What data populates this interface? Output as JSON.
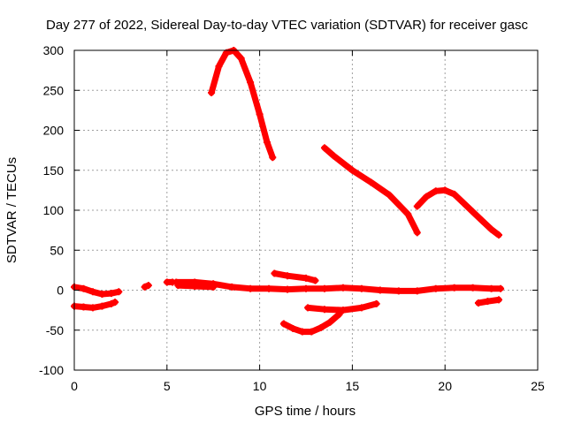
{
  "chart_data": {
    "type": "scatter",
    "title": "Day 277 of 2022, Sidereal Day-to-day VTEC variation (SDTVAR) for receiver gasc",
    "xlabel": "GPS time / hours",
    "ylabel": "SDTVAR / TECUs",
    "xlim": [
      0,
      25
    ],
    "ylim": [
      -100,
      300
    ],
    "xticks": [
      0,
      5,
      10,
      15,
      20,
      25
    ],
    "yticks": [
      -100,
      -50,
      0,
      50,
      100,
      150,
      200,
      250,
      300
    ],
    "grid": true,
    "marker": "+",
    "color": "#ff0000",
    "series": [
      {
        "name": "arc-1",
        "x": [
          0.0,
          0.5,
          1.0,
          1.5,
          2.0,
          2.4
        ],
        "y": [
          4,
          2,
          -2,
          -5,
          -4,
          -2
        ]
      },
      {
        "name": "arc-2",
        "x": [
          0.0,
          0.5,
          1.0,
          1.5,
          2.0,
          2.2
        ],
        "y": [
          -20,
          -21,
          -22,
          -20,
          -17,
          -15
        ]
      },
      {
        "name": "arc-3",
        "x": [
          3.8,
          4.0
        ],
        "y": [
          4,
          6
        ]
      },
      {
        "name": "arc-4",
        "x": [
          5.0,
          5.3
        ],
        "y": [
          10,
          10
        ]
      },
      {
        "name": "arc-5",
        "x": [
          5.5,
          6.5,
          7.5,
          8.5,
          9.5,
          10.5,
          11.5,
          12.5,
          13.5,
          14.5,
          15.5,
          16.5,
          17.5,
          18.5,
          19.5,
          20.5,
          21.5,
          22.5,
          23.0
        ],
        "y": [
          10,
          10,
          8,
          4,
          2,
          2,
          1,
          2,
          2,
          3,
          2,
          0,
          -1,
          -1,
          2,
          3,
          3,
          2,
          2
        ]
      },
      {
        "name": "arc-6",
        "x": [
          5.6,
          6.5,
          7.5
        ],
        "y": [
          6,
          5,
          4
        ]
      },
      {
        "name": "arc-7",
        "x": [
          7.4,
          7.8,
          8.2,
          8.6,
          9.0,
          9.5,
          10.0,
          10.4,
          10.7
        ],
        "y": [
          247,
          280,
          297,
          300,
          290,
          260,
          220,
          185,
          166
        ]
      },
      {
        "name": "arc-8",
        "x": [
          10.8,
          11.5,
          12.5,
          13.0
        ],
        "y": [
          21,
          18,
          15,
          12
        ]
      },
      {
        "name": "arc-9",
        "x": [
          11.3,
          11.8,
          12.3,
          12.8,
          13.3,
          13.8,
          14.3
        ],
        "y": [
          -42,
          -48,
          -52,
          -52,
          -47,
          -40,
          -30
        ]
      },
      {
        "name": "arc-10",
        "x": [
          12.6,
          13.5,
          14.5,
          15.5,
          16.3
        ],
        "y": [
          -22,
          -24,
          -25,
          -22,
          -17
        ]
      },
      {
        "name": "arc-11",
        "x": [
          13.5,
          14.0,
          15.0,
          16.0,
          17.0,
          18.0,
          18.5
        ],
        "y": [
          178,
          168,
          150,
          135,
          119,
          95,
          72
        ]
      },
      {
        "name": "arc-12",
        "x": [
          18.5,
          19.0,
          19.5,
          20.0,
          20.5,
          21.0,
          21.5,
          22.0,
          22.5,
          22.9
        ],
        "y": [
          105,
          117,
          124,
          125,
          120,
          109,
          98,
          87,
          76,
          69
        ]
      },
      {
        "name": "arc-13",
        "x": [
          21.8,
          22.3,
          22.9
        ],
        "y": [
          -16,
          -14,
          -12
        ]
      }
    ]
  }
}
